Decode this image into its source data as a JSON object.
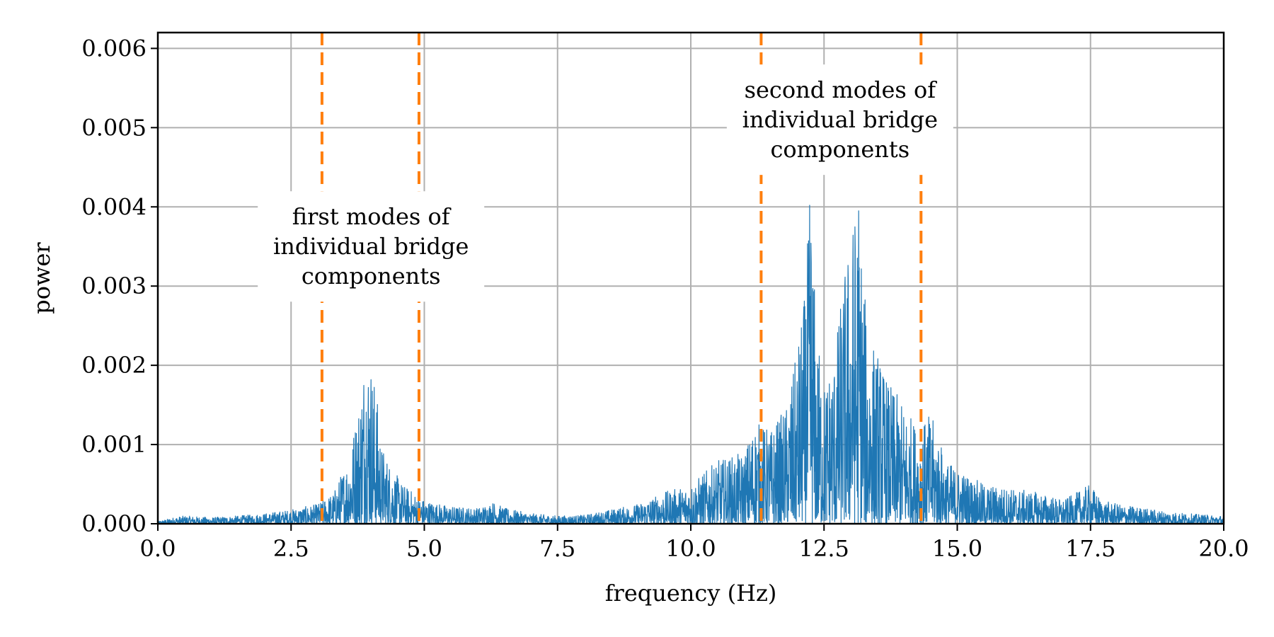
{
  "chart_data": {
    "type": "line",
    "title": "",
    "xlabel": "frequency (Hz)",
    "ylabel": "power",
    "xlim": [
      0,
      20
    ],
    "ylim": [
      0,
      0.0062
    ],
    "x_ticks": [
      0,
      2.5,
      5,
      7.5,
      10,
      12.5,
      15,
      17.5,
      20
    ],
    "x_tick_labels": [
      "0.0",
      "2.5",
      "5.0",
      "7.5",
      "10.0",
      "12.5",
      "15.0",
      "17.5",
      "20.0"
    ],
    "y_ticks": [
      0,
      0.001,
      0.002,
      0.003,
      0.004,
      0.005,
      0.006
    ],
    "y_tick_labels": [
      "0.000",
      "0.001",
      "0.002",
      "0.003",
      "0.004",
      "0.005",
      "0.006"
    ],
    "grid": true,
    "series": [
      {
        "color": "#1f77b4",
        "envelope": [
          [
            0.0,
            3e-05
          ],
          [
            0.3,
            8e-05
          ],
          [
            0.5,
            0.0001
          ],
          [
            1.0,
            8e-05
          ],
          [
            1.5,
            0.0001
          ],
          [
            2.0,
            0.00013
          ],
          [
            2.5,
            0.00018
          ],
          [
            3.0,
            0.00025
          ],
          [
            3.3,
            0.0004
          ],
          [
            3.6,
            0.0009
          ],
          [
            3.8,
            0.0017
          ],
          [
            3.9,
            0.00235
          ],
          [
            4.0,
            0.0021
          ],
          [
            4.1,
            0.0017
          ],
          [
            4.2,
            0.001
          ],
          [
            4.4,
            0.0007
          ],
          [
            4.6,
            0.0005
          ],
          [
            4.8,
            0.0004
          ],
          [
            5.0,
            0.0003
          ],
          [
            5.5,
            0.00022
          ],
          [
            6.0,
            0.0002
          ],
          [
            6.3,
            0.00028
          ],
          [
            6.5,
            0.0002
          ],
          [
            7.0,
            0.00013
          ],
          [
            7.5,
            0.0001
          ],
          [
            8.0,
            0.00011
          ],
          [
            8.5,
            0.00018
          ],
          [
            9.0,
            0.00025
          ],
          [
            9.5,
            0.0004
          ],
          [
            10.0,
            0.0005
          ],
          [
            10.5,
            0.0008
          ],
          [
            11.0,
            0.0009
          ],
          [
            11.2,
            0.0013
          ],
          [
            11.5,
            0.0012
          ],
          [
            11.8,
            0.0015
          ],
          [
            12.0,
            0.0022
          ],
          [
            12.15,
            0.003
          ],
          [
            12.25,
            0.0044
          ],
          [
            12.35,
            0.0025
          ],
          [
            12.5,
            0.0018
          ],
          [
            12.7,
            0.0022
          ],
          [
            12.9,
            0.0033
          ],
          [
            13.05,
            0.0039
          ],
          [
            13.15,
            0.0043
          ],
          [
            13.3,
            0.0025
          ],
          [
            13.5,
            0.0022
          ],
          [
            13.7,
            0.0018
          ],
          [
            14.0,
            0.0015
          ],
          [
            14.3,
            0.0012
          ],
          [
            14.5,
            0.0014
          ],
          [
            14.8,
            0.0008
          ],
          [
            15.0,
            0.0007
          ],
          [
            15.5,
            0.0005
          ],
          [
            16.0,
            0.00045
          ],
          [
            16.5,
            0.0004
          ],
          [
            17.0,
            0.0003
          ],
          [
            17.5,
            0.0005
          ],
          [
            17.7,
            0.0003
          ],
          [
            18.0,
            0.00025
          ],
          [
            18.5,
            0.0002
          ],
          [
            19.0,
            0.00015
          ],
          [
            19.5,
            0.00012
          ],
          [
            20.0,
            0.0001
          ]
        ]
      }
    ],
    "vlines": {
      "color": "#ff7f0e",
      "style": "dashed",
      "x": [
        3.08,
        4.9,
        11.32,
        14.32
      ]
    },
    "annotations": [
      {
        "lines": [
          "first modes of",
          "individual bridge",
          "components"
        ],
        "x": 4.0,
        "y": 0.0035
      },
      {
        "lines": [
          "second modes of",
          "individual bridge",
          "components"
        ],
        "x": 12.8,
        "y": 0.0051
      }
    ]
  }
}
